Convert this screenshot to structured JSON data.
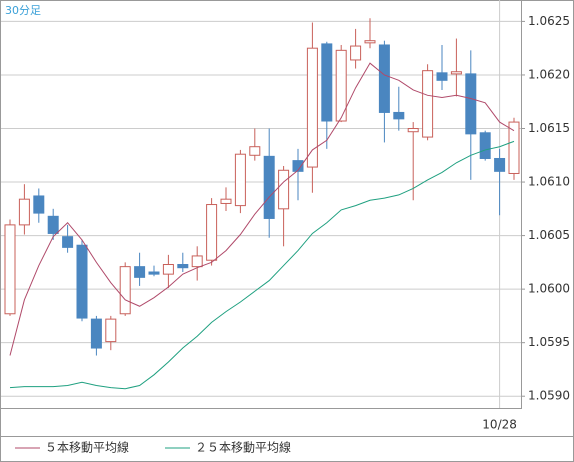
{
  "chart_data": {
    "type": "candlestick",
    "title": "30分足",
    "categories": [
      null,
      null,
      null,
      null,
      null,
      null,
      null,
      null,
      null,
      null,
      null,
      null,
      null,
      null,
      null,
      null,
      null,
      null,
      null,
      null,
      null,
      null,
      null,
      null,
      null,
      null,
      null,
      null,
      null,
      null,
      null,
      null,
      null,
      null,
      "10/28",
      null
    ],
    "open": [
      1.05977,
      1.0606,
      1.06087,
      1.06068,
      1.06049,
      1.06041,
      1.05972,
      1.05951,
      1.05977,
      1.06021,
      1.06016,
      1.06014,
      1.06023,
      1.06021,
      1.06027,
      1.0608,
      1.06078,
      1.06125,
      1.06124,
      1.06075,
      1.0612,
      1.06114,
      1.06229,
      1.06157,
      1.06214,
      1.0623,
      1.06228,
      1.06165,
      1.06147,
      1.06142,
      1.06202,
      1.06201,
      1.06201,
      1.06146,
      1.06122,
      1.06108
    ],
    "high": [
      1.06065,
      1.06098,
      1.06094,
      1.06075,
      1.0606,
      1.06046,
      1.05975,
      1.05975,
      1.06025,
      1.06034,
      1.06022,
      1.06032,
      1.06034,
      1.0604,
      1.06085,
      1.06095,
      1.0613,
      1.0615,
      1.0615,
      1.06115,
      1.06131,
      1.06249,
      1.06231,
      1.06228,
      1.06243,
      1.06253,
      1.06232,
      1.06189,
      1.06156,
      1.0621,
      1.06228,
      1.06234,
      1.06223,
      1.06148,
      1.06131,
      1.0616
    ],
    "low": [
      1.05975,
      1.06051,
      1.06062,
      1.06046,
      1.06034,
      1.0597,
      1.05938,
      1.05943,
      1.05975,
      1.06003,
      1.06012,
      1.06001,
      1.06016,
      1.06008,
      1.06022,
      1.06073,
      1.06071,
      1.0612,
      1.06048,
      1.0604,
      1.06083,
      1.0609,
      1.06131,
      1.06156,
      1.06206,
      1.06225,
      1.06137,
      1.06148,
      1.06083,
      1.06139,
      1.06186,
      1.0618,
      1.06102,
      1.0612,
      1.06069,
      1.06102
    ],
    "close": [
      1.0606,
      1.06084,
      1.06071,
      1.06052,
      1.06039,
      1.05973,
      1.05945,
      1.05972,
      1.06021,
      1.06011,
      1.06014,
      1.06023,
      1.0602,
      1.06031,
      1.06079,
      1.06084,
      1.06126,
      1.06133,
      1.06066,
      1.06111,
      1.0611,
      1.06225,
      1.06157,
      1.06223,
      1.06227,
      1.06232,
      1.06165,
      1.06159,
      1.0615,
      1.06204,
      1.06195,
      1.06203,
      1.06145,
      1.06122,
      1.0611,
      1.06156
    ],
    "up_color": "#c8605a",
    "down_color": "#4a86c0",
    "series": [
      {
        "name": "５本移動平均線",
        "color": "#b04a6a",
        "values": [
          1.05938,
          1.0599,
          1.06022,
          1.06049,
          1.06062,
          1.06046,
          1.06025,
          1.06006,
          1.0599,
          1.05984,
          1.05992,
          1.06002,
          1.06014,
          1.0602,
          1.06025,
          1.06036,
          1.06051,
          1.0607,
          1.06086,
          1.061,
          1.06111,
          1.0613,
          1.06139,
          1.0616,
          1.06188,
          1.06211,
          1.062,
          1.06195,
          1.06186,
          1.06181,
          1.06179,
          1.06181,
          1.06178,
          1.06174,
          1.06156,
          1.06148
        ]
      },
      {
        "name": "２５本移動平均線",
        "color": "#1fa080",
        "values": [
          1.05908,
          1.05909,
          1.05909,
          1.05909,
          1.0591,
          1.05913,
          1.0591,
          1.05908,
          1.05907,
          1.0591,
          1.0592,
          1.05932,
          1.05945,
          1.05956,
          1.05969,
          1.05979,
          1.05988,
          1.05998,
          1.06008,
          1.06022,
          1.06036,
          1.06052,
          1.06062,
          1.06074,
          1.06078,
          1.06083,
          1.06085,
          1.06088,
          1.06094,
          1.06102,
          1.06109,
          1.06118,
          1.06125,
          1.0613,
          1.06133,
          1.06138
        ]
      }
    ],
    "ylim": [
      1.05889,
      1.0627
    ],
    "yticks": [
      {
        "value": 1.059,
        "label": "1.0590"
      },
      1.0595,
      {
        "value": 1.06,
        "label": "1.0600"
      },
      1.0605,
      {
        "value": 1.061,
        "label": "1.0610"
      },
      1.0615,
      {
        "value": 1.062,
        "label": "1.0620"
      },
      1.0625
    ],
    "grid": true
  }
}
